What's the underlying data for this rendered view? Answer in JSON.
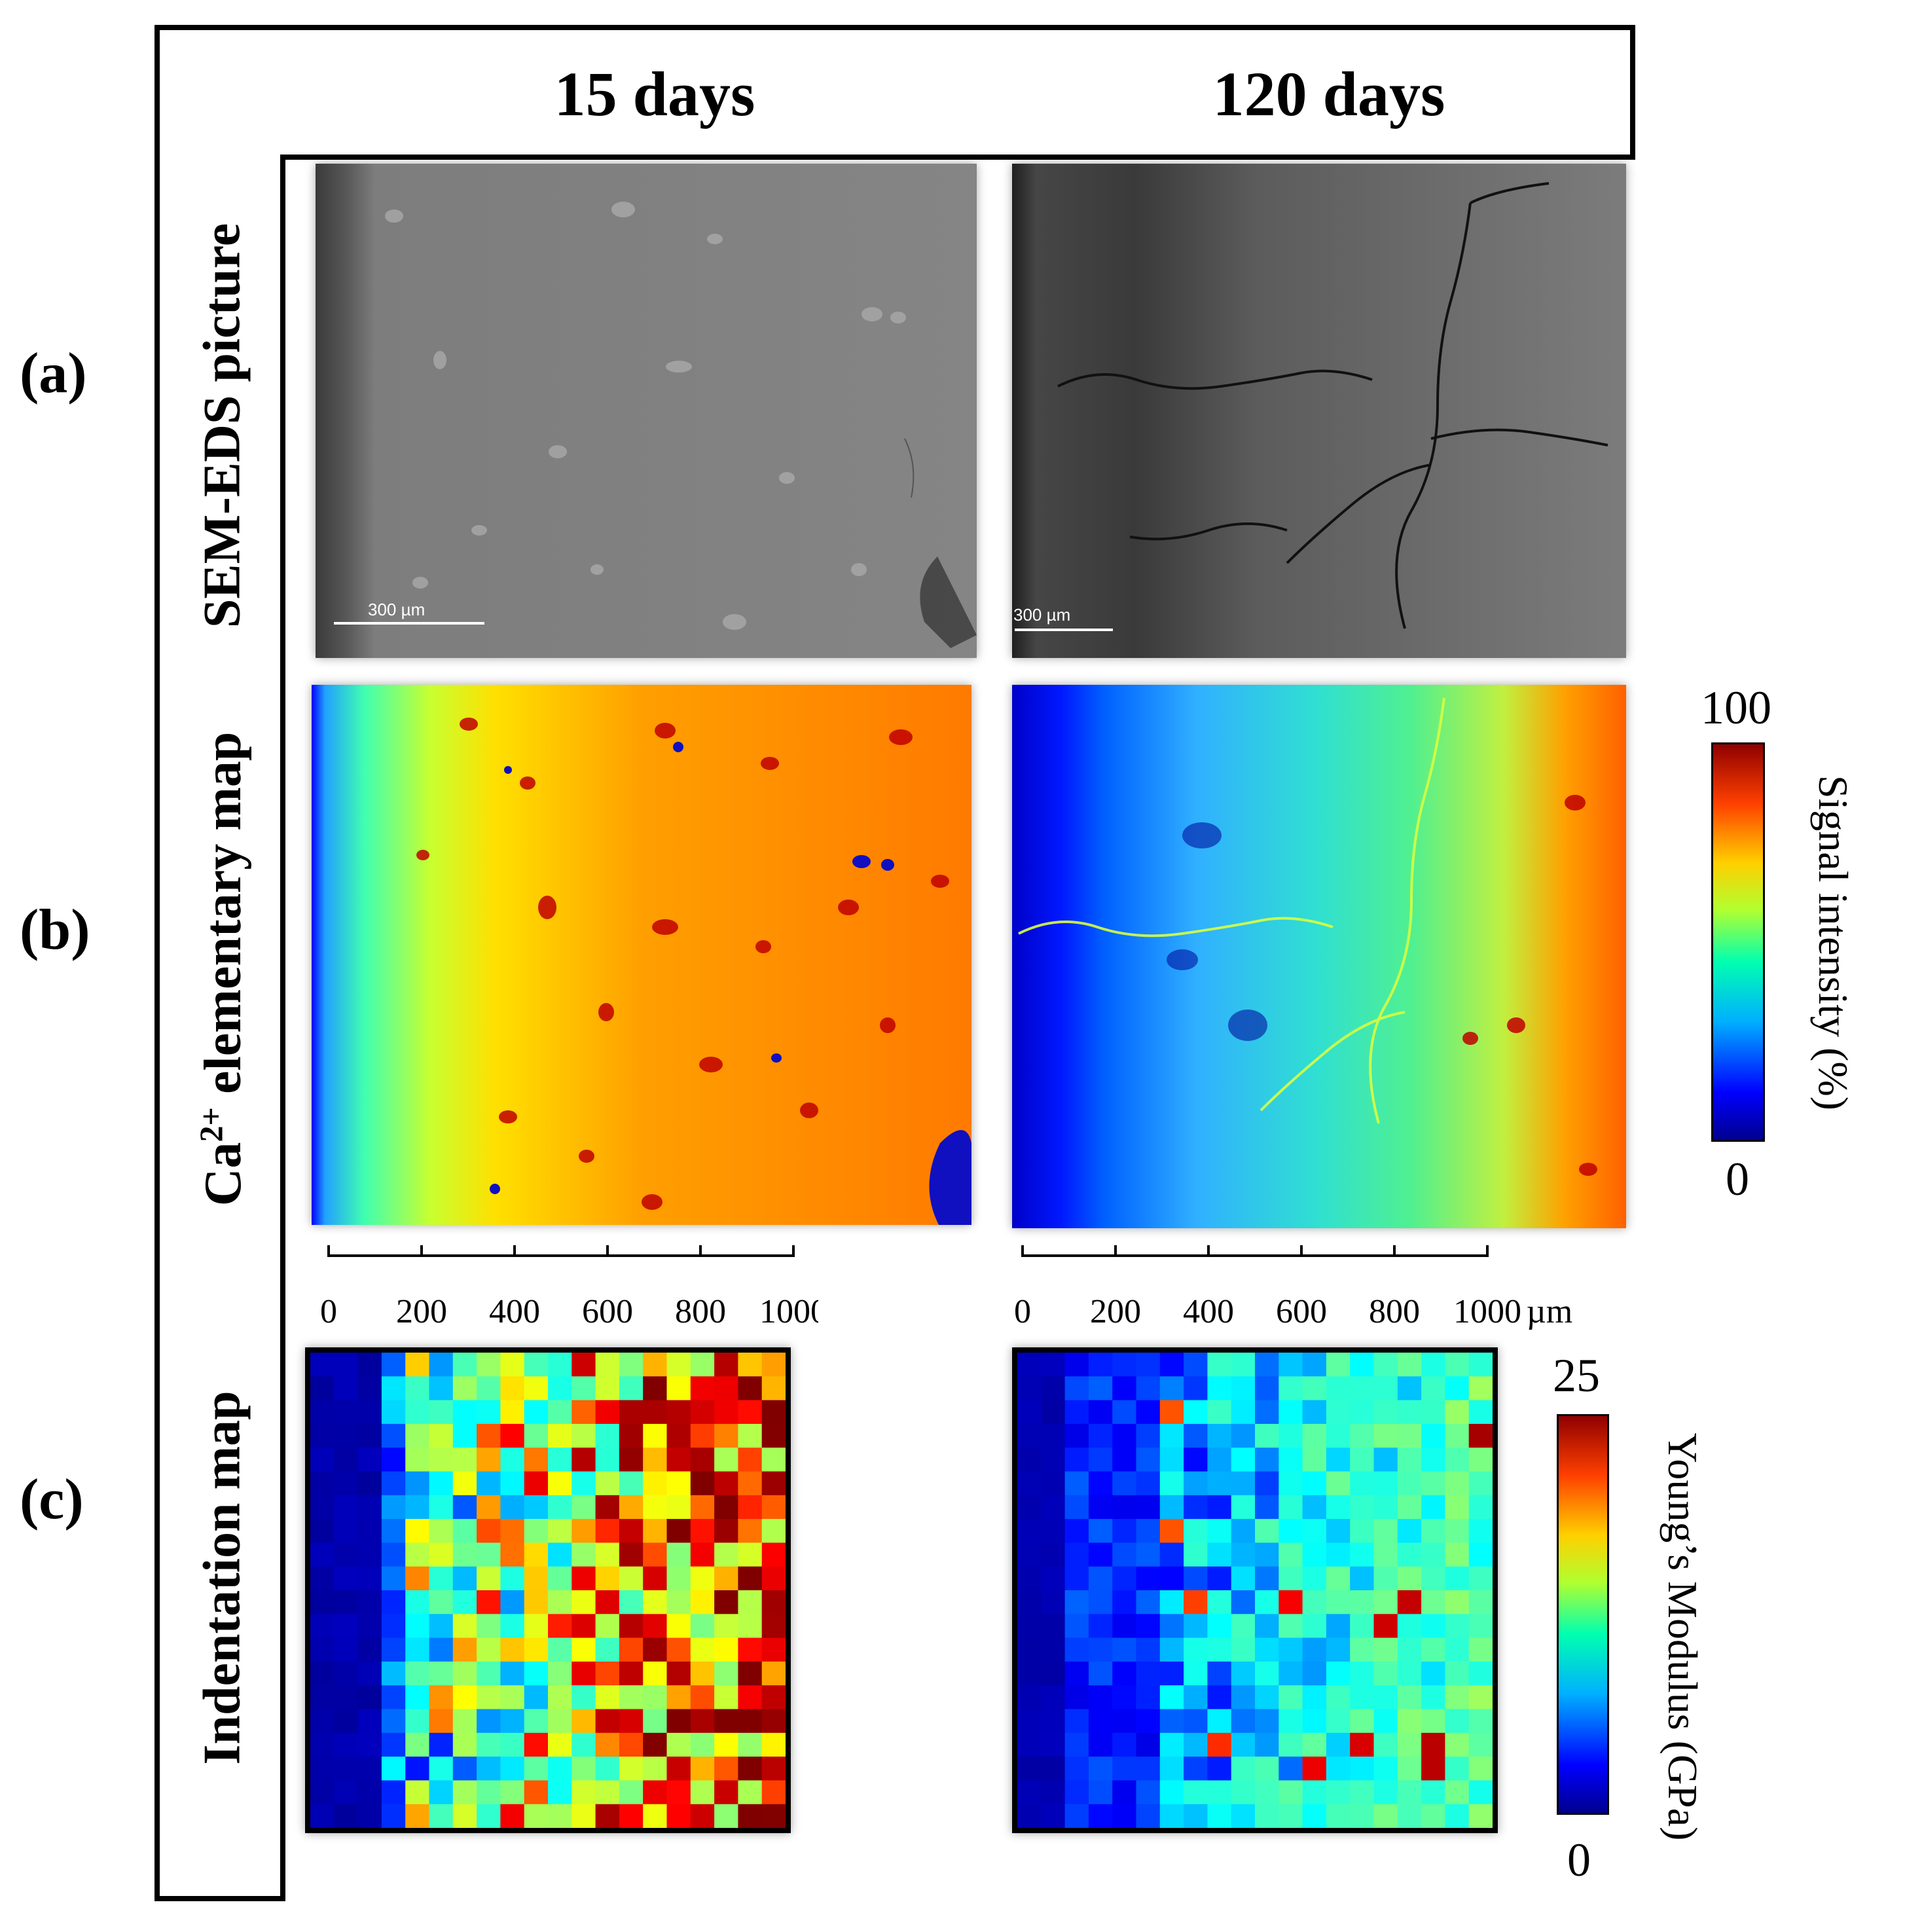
{
  "columns": [
    "15 days",
    "120 days"
  ],
  "rows": [
    {
      "label": "(a)",
      "title": "SEM-EDS picture"
    },
    {
      "label": "(b)",
      "title_prefix": "Ca",
      "title_sup": "2+",
      "title_suffix": " elementary map"
    },
    {
      "label": "(c)",
      "title": "Indentation map"
    }
  ],
  "sem": {
    "scale_label": "300 µm"
  },
  "axis": {
    "ticks": [
      "0",
      "200",
      "400",
      "600",
      "800",
      "1000"
    ],
    "unit": "µm"
  },
  "colorbar_signal": {
    "max": "100",
    "min": "0",
    "title": "Signal intensity (%)"
  },
  "colorbar_modulus": {
    "max": "25",
    "min": "0",
    "title": "Young’s Modulus (GPa)"
  },
  "colors": {
    "jet": [
      "#00008f",
      "#0000ff",
      "#00ffff",
      "#7fff7f",
      "#ffff00",
      "#ff0000",
      "#800000"
    ]
  }
}
